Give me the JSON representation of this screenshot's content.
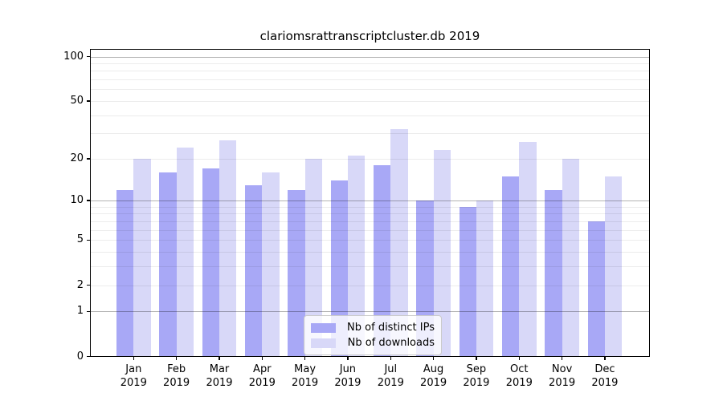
{
  "title": "clariomsrattranscriptcluster.db 2019",
  "chart_data": {
    "type": "bar",
    "title": "clariomsrattranscriptcluster.db 2019",
    "categories": [
      "Jan",
      "Feb",
      "Mar",
      "Apr",
      "May",
      "Jun",
      "Jul",
      "Aug",
      "Sep",
      "Oct",
      "Nov",
      "Dec"
    ],
    "year": "2019",
    "series": [
      {
        "name": "Nb of distinct IPs",
        "color": "#a8a8f6",
        "values": [
          12,
          16,
          17,
          13,
          12,
          14,
          18,
          10,
          9,
          15,
          12,
          7
        ]
      },
      {
        "name": "Nb of downloads",
        "color": "#d8d8f8",
        "values": [
          20,
          24,
          27,
          16,
          20,
          21,
          32,
          23,
          10,
          26,
          20,
          15
        ]
      }
    ],
    "xlabel": "",
    "ylabel": "",
    "y_axis_ticks": [
      100,
      50,
      20,
      10,
      5,
      2,
      1,
      0
    ],
    "y_grid_minor_values": [
      2,
      3,
      4,
      5,
      6,
      7,
      8,
      9,
      20,
      30,
      40,
      50,
      60,
      70,
      80,
      90
    ],
    "y_grid_major_values": [
      1,
      10,
      100
    ],
    "scale": "log10(1+value)",
    "ylim": [
      0,
      112
    ],
    "grid": "horizontal",
    "legend_position": "inside lower center",
    "background_color": "#ffffff",
    "axis_color": "#000000"
  }
}
